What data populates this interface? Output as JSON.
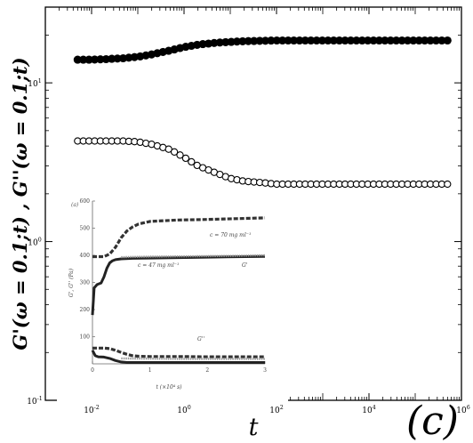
{
  "panel_letter": "(c)",
  "chart_data": [
    {
      "type": "scatter",
      "title": "",
      "xlabel": "t",
      "ylabel": "G'(ω = 0.1;t) , G''(ω = 0.1;t)",
      "x_scale": "log",
      "y_scale": "log",
      "xlim": [
        0.001,
        1000000
      ],
      "ylim": [
        0.1,
        30
      ],
      "x_ticks": [
        "10^-2",
        "10^0",
        "10^2",
        "10^4",
        "10^6"
      ],
      "y_ticks": [
        "10^-1",
        "10^0",
        "10^1"
      ],
      "grid": false,
      "series": [
        {
          "marker": "filled-circle",
          "x": [
            0.005,
            0.01,
            0.02,
            0.05,
            0.1,
            0.2,
            0.5,
            1,
            2,
            5,
            10,
            20,
            50,
            100,
            1000,
            10000,
            100000,
            500000
          ],
          "y": [
            14.0,
            14.0,
            14.1,
            14.3,
            14.6,
            15.1,
            16.0,
            16.8,
            17.4,
            17.9,
            18.1,
            18.3,
            18.4,
            18.5,
            18.5,
            18.5,
            18.5,
            18.5
          ]
        },
        {
          "marker": "open-circle",
          "x": [
            0.005,
            0.01,
            0.02,
            0.05,
            0.1,
            0.2,
            0.5,
            1,
            2,
            5,
            10,
            20,
            50,
            100,
            1000,
            10000,
            100000,
            500000
          ],
          "y": [
            4.3,
            4.3,
            4.3,
            4.3,
            4.25,
            4.1,
            3.8,
            3.4,
            3.0,
            2.7,
            2.5,
            2.4,
            2.35,
            2.3,
            2.3,
            2.3,
            2.3,
            2.3
          ]
        }
      ]
    },
    {
      "type": "line",
      "title": "",
      "panel_tag": "(a)",
      "xlabel": "t (×10⁴ s)",
      "ylabel": "G', G'' (Pa)",
      "xlim": [
        0,
        3
      ],
      "ylim": [
        0,
        600
      ],
      "x_ticks": [
        "0",
        "1",
        "2",
        "3"
      ],
      "y_ticks": [
        "100",
        "200",
        "300",
        "400",
        "500",
        "600"
      ],
      "annotations": [
        "c = 70 mg ml⁻¹",
        "c = 47 mg ml⁻¹",
        "G'",
        "G''"
      ],
      "series": [
        {
          "style": "dashed-dark",
          "x": [
            0,
            0.1,
            0.2,
            0.3,
            0.4,
            0.5,
            0.6,
            0.7,
            0.8,
            1.0,
            1.5,
            2.0,
            2.5,
            3.0
          ],
          "y": [
            395,
            395,
            395,
            405,
            430,
            465,
            490,
            505,
            515,
            525,
            530,
            532,
            535,
            538
          ]
        },
        {
          "style": "solid-dark",
          "x": [
            0,
            0.03,
            0.08,
            0.15,
            0.2,
            0.25,
            0.3,
            0.35,
            0.4,
            0.5,
            0.7,
            1.0,
            2.0,
            3.0
          ],
          "y": [
            180,
            280,
            292,
            298,
            320,
            352,
            372,
            380,
            384,
            387,
            389,
            390,
            393,
            396
          ]
        },
        {
          "style": "solid-grey",
          "x": [
            0.5,
            1.0,
            1.5,
            2.0,
            2.5,
            3.0
          ],
          "y": [
            393,
            395,
            396,
            397,
            398,
            400
          ]
        },
        {
          "style": "dashed-dark",
          "x": [
            0,
            0.1,
            0.2,
            0.3,
            0.4,
            0.5,
            0.6,
            0.7,
            0.8,
            1.0,
            1.5,
            2.0,
            2.5,
            3.0
          ],
          "y": [
            58,
            58,
            58,
            56,
            50,
            42,
            35,
            30,
            28,
            27,
            27,
            26,
            26,
            26
          ]
        },
        {
          "style": "solid-dark",
          "x": [
            0,
            0.05,
            0.1,
            0.2,
            0.3,
            0.4,
            0.5,
            0.6,
            0.8,
            1.0,
            1.5,
            2.0,
            2.5,
            3.0
          ],
          "y": [
            50,
            30,
            26,
            25,
            20,
            12,
            7,
            5,
            5,
            5,
            5,
            5,
            5,
            5
          ]
        },
        {
          "style": "solid-grey",
          "x": [
            0.5,
            1.0,
            1.5,
            2.0,
            2.5,
            3.0
          ],
          "y": [
            20,
            19,
            18,
            18,
            18,
            18
          ]
        }
      ]
    }
  ]
}
